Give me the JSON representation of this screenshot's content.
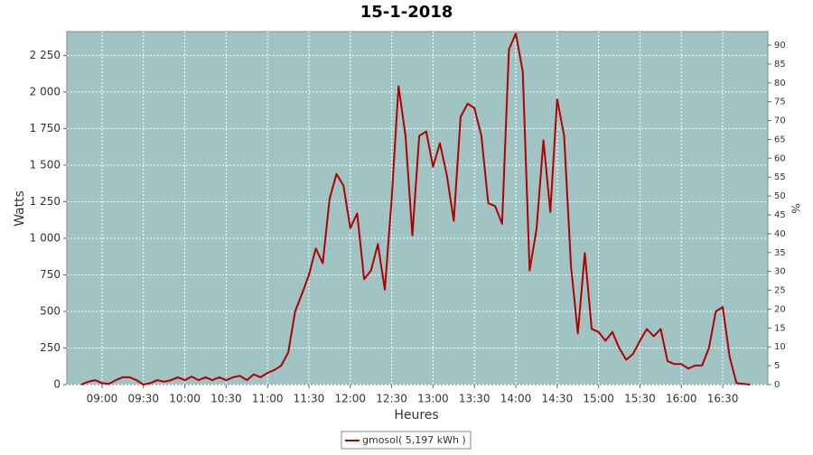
{
  "chart_data": {
    "type": "line",
    "title": "15-1-2018",
    "x_label": "Heures",
    "y_label": "Watts",
    "y2_label": "%",
    "x": [
      525,
      530,
      535,
      540,
      545,
      550,
      555,
      560,
      565,
      570,
      575,
      580,
      585,
      590,
      595,
      600,
      605,
      610,
      615,
      620,
      625,
      630,
      635,
      640,
      645,
      650,
      655,
      660,
      665,
      670,
      675,
      680,
      685,
      690,
      695,
      700,
      705,
      710,
      715,
      720,
      725,
      730,
      735,
      740,
      745,
      750,
      755,
      760,
      765,
      770,
      775,
      780,
      785,
      790,
      795,
      800,
      805,
      810,
      815,
      820,
      825,
      830,
      835,
      840,
      845,
      850,
      855,
      860,
      865,
      870,
      875,
      880,
      885,
      890,
      895,
      900,
      905,
      910,
      915,
      920,
      925,
      930,
      935,
      940,
      945,
      950,
      955,
      960,
      965,
      970,
      975,
      980,
      985,
      990,
      995,
      1000,
      1005,
      1010
    ],
    "series": [
      {
        "name": "gmosol( 5,197 kWh )",
        "color": "#b00000",
        "values": [
          0,
          20,
          30,
          10,
          5,
          30,
          50,
          50,
          30,
          0,
          10,
          30,
          20,
          30,
          50,
          30,
          55,
          30,
          50,
          30,
          50,
          30,
          50,
          60,
          30,
          70,
          50,
          80,
          100,
          130,
          220,
          500,
          620,
          750,
          930,
          830,
          1270,
          1440,
          1360,
          1070,
          1170,
          720,
          780,
          960,
          650,
          1270,
          2040,
          1700,
          1020,
          1700,
          1730,
          1490,
          1650,
          1430,
          1120,
          1830,
          1920,
          1890,
          1700,
          1240,
          1220,
          1100,
          2290,
          2400,
          2140,
          780,
          1060,
          1670,
          1180,
          1950,
          1700,
          810,
          350,
          900,
          380,
          360,
          300,
          360,
          250,
          170,
          210,
          300,
          380,
          330,
          380,
          160,
          140,
          140,
          110,
          130,
          130,
          250,
          500,
          530,
          190,
          10,
          5,
          0
        ]
      }
    ],
    "xlim": [
      514.5,
      1022.7
    ],
    "xticks": [
      {
        "value": 540,
        "label": "09:00"
      },
      {
        "value": 570,
        "label": "09:30"
      },
      {
        "value": 600,
        "label": "10:00"
      },
      {
        "value": 630,
        "label": "10:30"
      },
      {
        "value": 660,
        "label": "11:00"
      },
      {
        "value": 690,
        "label": "11:30"
      },
      {
        "value": 720,
        "label": "12:00"
      },
      {
        "value": 750,
        "label": "12:30"
      },
      {
        "value": 780,
        "label": "13:00"
      },
      {
        "value": 810,
        "label": "13:30"
      },
      {
        "value": 840,
        "label": "14:00"
      },
      {
        "value": 870,
        "label": "14:30"
      },
      {
        "value": 900,
        "label": "15:00"
      },
      {
        "value": 930,
        "label": "15:30"
      },
      {
        "value": 960,
        "label": "16:00"
      },
      {
        "value": 990,
        "label": "16:30"
      }
    ],
    "ylim": [
      0,
      2413
    ],
    "yticks": [
      0,
      250,
      500,
      750,
      {
        "value": 1000,
        "label": "1 000"
      },
      {
        "value": 1250,
        "label": "1 250"
      },
      {
        "value": 1500,
        "label": "1 500"
      },
      {
        "value": 1750,
        "label": "1 750"
      },
      {
        "value": 2000,
        "label": "2 000"
      },
      {
        "value": 2250,
        "label": "2 250"
      }
    ],
    "y2lim": [
      0,
      93.6
    ],
    "y2ticks": [
      0,
      5,
      10,
      15,
      20,
      25,
      30,
      35,
      40,
      45,
      50,
      55,
      60,
      65,
      70,
      75,
      80,
      85,
      90
    ],
    "grid": true,
    "plot_background": "#a0c4c4",
    "legend": "bottom"
  }
}
